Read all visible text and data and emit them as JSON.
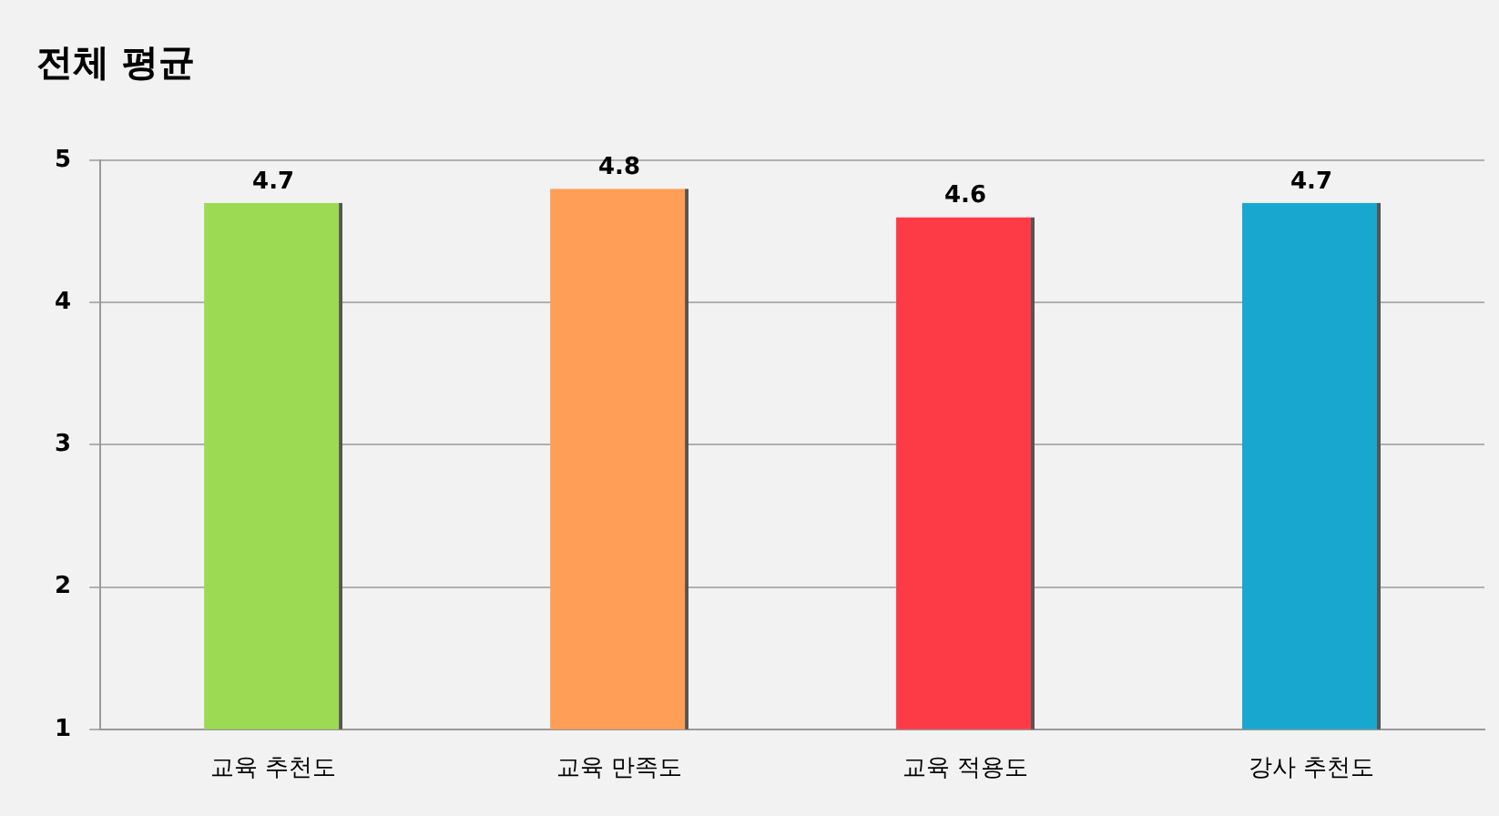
{
  "chart_data": {
    "type": "bar",
    "title": "전체 평균",
    "categories": [
      "교육 추천도",
      "교육 만족도",
      "교육 적용도",
      "강사 추천도"
    ],
    "values": [
      4.7,
      4.8,
      4.6,
      4.7
    ],
    "colors": [
      "#9bda52",
      "#ff9e56",
      "#fd3b46",
      "#18a8cf"
    ],
    "ylim": [
      1,
      5
    ],
    "yticks": [
      1,
      2,
      3,
      4,
      5
    ],
    "grid": "y",
    "data_labels": true
  }
}
